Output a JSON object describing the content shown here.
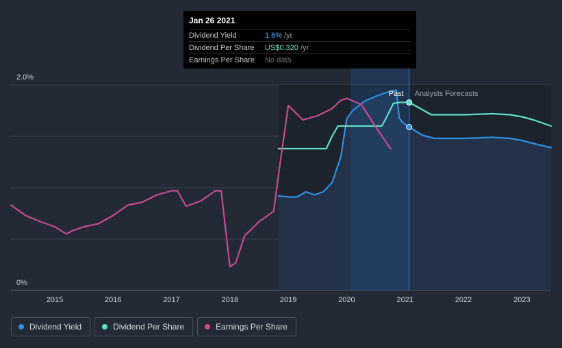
{
  "tooltip": {
    "date": "Jan 26 2021",
    "rows": [
      {
        "label": "Dividend Yield",
        "value": "1.6%",
        "unit": "/yr"
      },
      {
        "label": "Dividend Per Share",
        "value": "US$0.320",
        "unit": "/yr"
      },
      {
        "label": "Earnings Per Share",
        "value": "No data",
        "unit": ""
      }
    ]
  },
  "legend": [
    {
      "label": "Dividend Yield",
      "color": "#2e8fe6"
    },
    {
      "label": "Dividend Per Share",
      "color": "#5ee0c8"
    },
    {
      "label": "Earnings Per Share",
      "color": "#c84b8f"
    }
  ],
  "chart_data": {
    "type": "line",
    "y_tick_labels": [
      "2.0%",
      "0%"
    ],
    "ylim": [
      0,
      2.0
    ],
    "xlim": [
      2014.25,
      2023.5
    ],
    "x_tick_labels": [
      "2015",
      "2016",
      "2017",
      "2018",
      "2019",
      "2020",
      "2021",
      "2022",
      "2023"
    ],
    "x_ticks": [
      2015,
      2016,
      2017,
      2018,
      2019,
      2020,
      2021,
      2022,
      2023
    ],
    "past_label": "Past",
    "forecast_label": "Analysts Forecasts",
    "divider_x": 2021.07,
    "highlight_x": 2021.07,
    "series": [
      {
        "name": "Dividend Yield",
        "color": "#2e8fe6",
        "x": [
          2018.83,
          2019.0,
          2019.15,
          2019.3,
          2019.45,
          2019.6,
          2019.75,
          2019.9,
          2020.0,
          2020.1,
          2020.3,
          2020.5,
          2020.7,
          2020.85,
          2020.9,
          2020.95,
          2021.07,
          2021.3,
          2021.5,
          2022.0,
          2022.5,
          2022.8,
          2023.0,
          2023.2,
          2023.5
        ],
        "y": [
          0.92,
          0.91,
          0.91,
          0.96,
          0.93,
          0.96,
          1.05,
          1.3,
          1.67,
          1.75,
          1.84,
          1.89,
          1.93,
          1.95,
          1.68,
          1.64,
          1.59,
          1.51,
          1.48,
          1.48,
          1.49,
          1.48,
          1.46,
          1.43,
          1.39
        ]
      },
      {
        "name": "Dividend Per Share",
        "color": "#5ee0c8",
        "x": [
          2018.83,
          2019.0,
          2019.5,
          2019.65,
          2019.75,
          2019.85,
          2020.0,
          2020.3,
          2020.6,
          2020.65,
          2020.8,
          2020.9,
          2021.07,
          2021.2,
          2021.45,
          2021.6,
          2022.0,
          2022.5,
          2022.8,
          2023.0,
          2023.2,
          2023.5
        ],
        "y": [
          1.38,
          1.38,
          1.38,
          1.38,
          1.5,
          1.6,
          1.6,
          1.6,
          1.6,
          1.65,
          1.82,
          1.83,
          1.83,
          1.79,
          1.71,
          1.71,
          1.71,
          1.72,
          1.71,
          1.69,
          1.66,
          1.6
        ]
      },
      {
        "name": "Earnings Per Share",
        "color": "#c84b8f",
        "x": [
          2014.25,
          2014.5,
          2014.75,
          2015.0,
          2015.2,
          2015.3,
          2015.5,
          2015.75,
          2016.0,
          2016.25,
          2016.5,
          2016.75,
          2017.0,
          2017.1,
          2017.25,
          2017.5,
          2017.75,
          2017.85,
          2018.0,
          2018.1,
          2018.25,
          2018.5,
          2018.75,
          2018.85,
          2019.0,
          2019.25,
          2019.5,
          2019.75,
          2019.9,
          2020.0,
          2020.25,
          2020.5,
          2020.75
        ],
        "y": [
          0.83,
          0.73,
          0.67,
          0.62,
          0.55,
          0.58,
          0.62,
          0.65,
          0.73,
          0.83,
          0.86,
          0.93,
          0.97,
          0.97,
          0.82,
          0.87,
          0.97,
          0.97,
          0.23,
          0.27,
          0.53,
          0.67,
          0.77,
          1.2,
          1.8,
          1.66,
          1.7,
          1.77,
          1.85,
          1.87,
          1.81,
          1.59,
          1.38
        ]
      }
    ]
  }
}
